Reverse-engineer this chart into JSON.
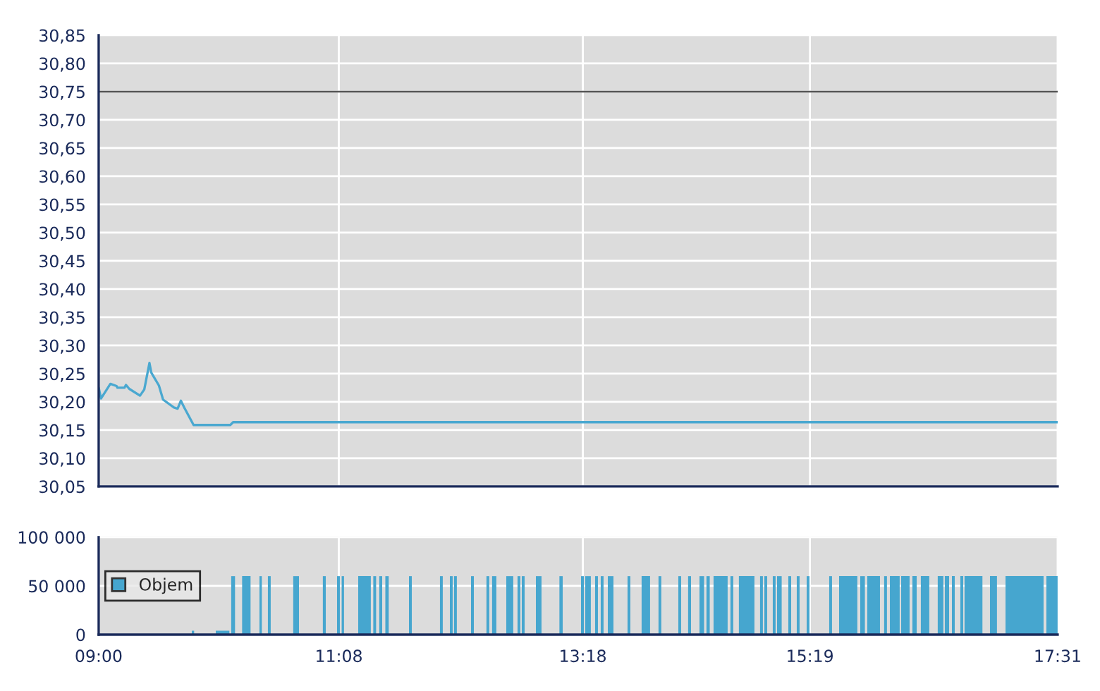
{
  "chart_data": [
    {
      "type": "line",
      "x": [
        9.0,
        9.021,
        9.104,
        9.159,
        9.167,
        9.229,
        9.242,
        9.272,
        9.367,
        9.405,
        9.451,
        9.467,
        9.535,
        9.572,
        9.668,
        9.701,
        9.73,
        9.76,
        9.843,
        10.169,
        10.194,
        17.517
      ],
      "series": [
        {
          "color": "#4aa8d0",
          "values": [
            30.225,
            30.206,
            30.232,
            30.228,
            30.225,
            30.225,
            30.23,
            30.223,
            30.211,
            30.222,
            30.269,
            30.252,
            30.229,
            30.204,
            30.19,
            30.188,
            30.202,
            30.19,
            30.159,
            30.159,
            30.164,
            30.164
          ]
        }
      ],
      "xlim": [
        9.0,
        17.517
      ],
      "xticks": [
        {
          "value": 9.0,
          "label": null
        },
        {
          "value": 11.133,
          "label": null
        },
        {
          "value": 13.3,
          "label": null
        },
        {
          "value": 15.317,
          "label": null
        },
        {
          "value": 17.517,
          "label": null
        }
      ],
      "ylim": [
        30.05,
        30.85
      ],
      "yticks": [
        {
          "value": 30.05,
          "label": "30,05"
        },
        {
          "value": 30.1,
          "label": "30,10"
        },
        {
          "value": 30.15,
          "label": "30,15"
        },
        {
          "value": 30.2,
          "label": "30,20"
        },
        {
          "value": 30.25,
          "label": "30,25"
        },
        {
          "value": 30.3,
          "label": "30,30"
        },
        {
          "value": 30.35,
          "label": "30,35"
        },
        {
          "value": 30.4,
          "label": "30,40"
        },
        {
          "value": 30.45,
          "label": "30,45"
        },
        {
          "value": 30.5,
          "label": "30,50"
        },
        {
          "value": 30.55,
          "label": "30,55"
        },
        {
          "value": 30.6,
          "label": "30,60"
        },
        {
          "value": 30.65,
          "label": "30,65"
        },
        {
          "value": 30.7,
          "label": "30,70"
        },
        {
          "value": 30.75,
          "label": "30,75"
        },
        {
          "value": 30.8,
          "label": "30,80"
        },
        {
          "value": 30.85,
          "label": "30,85"
        }
      ],
      "ref_lines": [
        {
          "axis": "y",
          "value": 30.75,
          "color": "#555555"
        }
      ],
      "grid": true,
      "tick_labels": "y"
    },
    {
      "type": "histogram",
      "bins": [
        9.827,
        9.848,
        10.04,
        10.161,
        10.177,
        10.211,
        10.274,
        10.349,
        10.428,
        10.449,
        10.503,
        10.528,
        10.728,
        10.779,
        10.991,
        11.017,
        11.117,
        11.142,
        11.158,
        11.179,
        11.305,
        11.417,
        11.439,
        11.464,
        11.492,
        11.518,
        11.546,
        11.576,
        11.756,
        11.781,
        12.031,
        12.056,
        12.119,
        12.144,
        12.156,
        12.181,
        12.307,
        12.332,
        12.444,
        12.469,
        12.494,
        12.532,
        12.62,
        12.682,
        12.72,
        12.745,
        12.758,
        12.783,
        12.883,
        12.933,
        13.092,
        13.121,
        13.284,
        13.309,
        13.321,
        13.371,
        13.409,
        13.434,
        13.459,
        13.484,
        13.522,
        13.572,
        13.697,
        13.722,
        13.822,
        13.897,
        13.972,
        13.997,
        14.148,
        14.173,
        14.235,
        14.261,
        14.336,
        14.377,
        14.398,
        14.427,
        14.461,
        14.586,
        14.611,
        14.636,
        14.686,
        14.824,
        14.874,
        14.899,
        14.912,
        14.937,
        14.987,
        15.012,
        15.025,
        15.066,
        15.125,
        15.15,
        15.2,
        15.225,
        15.288,
        15.313,
        15.488,
        15.513,
        15.576,
        15.738,
        15.764,
        15.805,
        15.826,
        15.939,
        15.976,
        16.001,
        16.027,
        16.114,
        16.127,
        16.202,
        16.227,
        16.265,
        16.302,
        16.377,
        16.452,
        16.502,
        16.515,
        16.553,
        16.578,
        16.603,
        16.653,
        16.678,
        16.69,
        16.849,
        16.916,
        16.978,
        17.054,
        17.392,
        17.417,
        17.517
      ],
      "series": [
        {
          "name": "Objem",
          "color": "#46a6cf",
          "values": [
            4000,
            0,
            4000,
            0,
            60000,
            0,
            60000,
            0,
            60000,
            0,
            60000,
            0,
            60000,
            0,
            60000,
            0,
            60000,
            0,
            60000,
            0,
            60000,
            0,
            60000,
            0,
            60000,
            0,
            60000,
            0,
            60000,
            0,
            60000,
            0,
            60000,
            0,
            60000,
            0,
            60000,
            0,
            60000,
            0,
            60000,
            0,
            60000,
            0,
            60000,
            0,
            60000,
            0,
            60000,
            0,
            60000,
            0,
            60000,
            0,
            60000,
            0,
            60000,
            0,
            60000,
            0,
            60000,
            0,
            60000,
            0,
            60000,
            0,
            60000,
            0,
            60000,
            0,
            60000,
            0,
            60000,
            0,
            60000,
            0,
            60000,
            0,
            60000,
            0,
            60000,
            0,
            60000,
            0,
            60000,
            0,
            60000,
            0,
            60000,
            0,
            60000,
            0,
            60000,
            0,
            60000,
            0,
            60000,
            0,
            60000,
            0,
            60000,
            0,
            60000,
            0,
            60000,
            0,
            60000,
            0,
            60000,
            0,
            60000,
            0,
            60000,
            0,
            60000,
            0,
            60000,
            0,
            60000,
            0,
            60000,
            0,
            60000,
            0,
            60000,
            0,
            60000,
            0,
            60000
          ]
        }
      ],
      "xlim": [
        9.0,
        17.517
      ],
      "xticks": [
        {
          "value": 9.0,
          "label": "09:00"
        },
        {
          "value": 11.133,
          "label": "11:08"
        },
        {
          "value": 13.3,
          "label": "13:18"
        },
        {
          "value": 15.317,
          "label": "15:19"
        },
        {
          "value": 17.517,
          "label": "17:31"
        }
      ],
      "ylim": [
        0,
        100000
      ],
      "yticks": [
        {
          "value": 0,
          "label": "0"
        },
        {
          "value": 50000,
          "label": "50 000"
        },
        {
          "value": 100000,
          "label": "100 000"
        }
      ],
      "grid": true,
      "legend": "left"
    }
  ]
}
